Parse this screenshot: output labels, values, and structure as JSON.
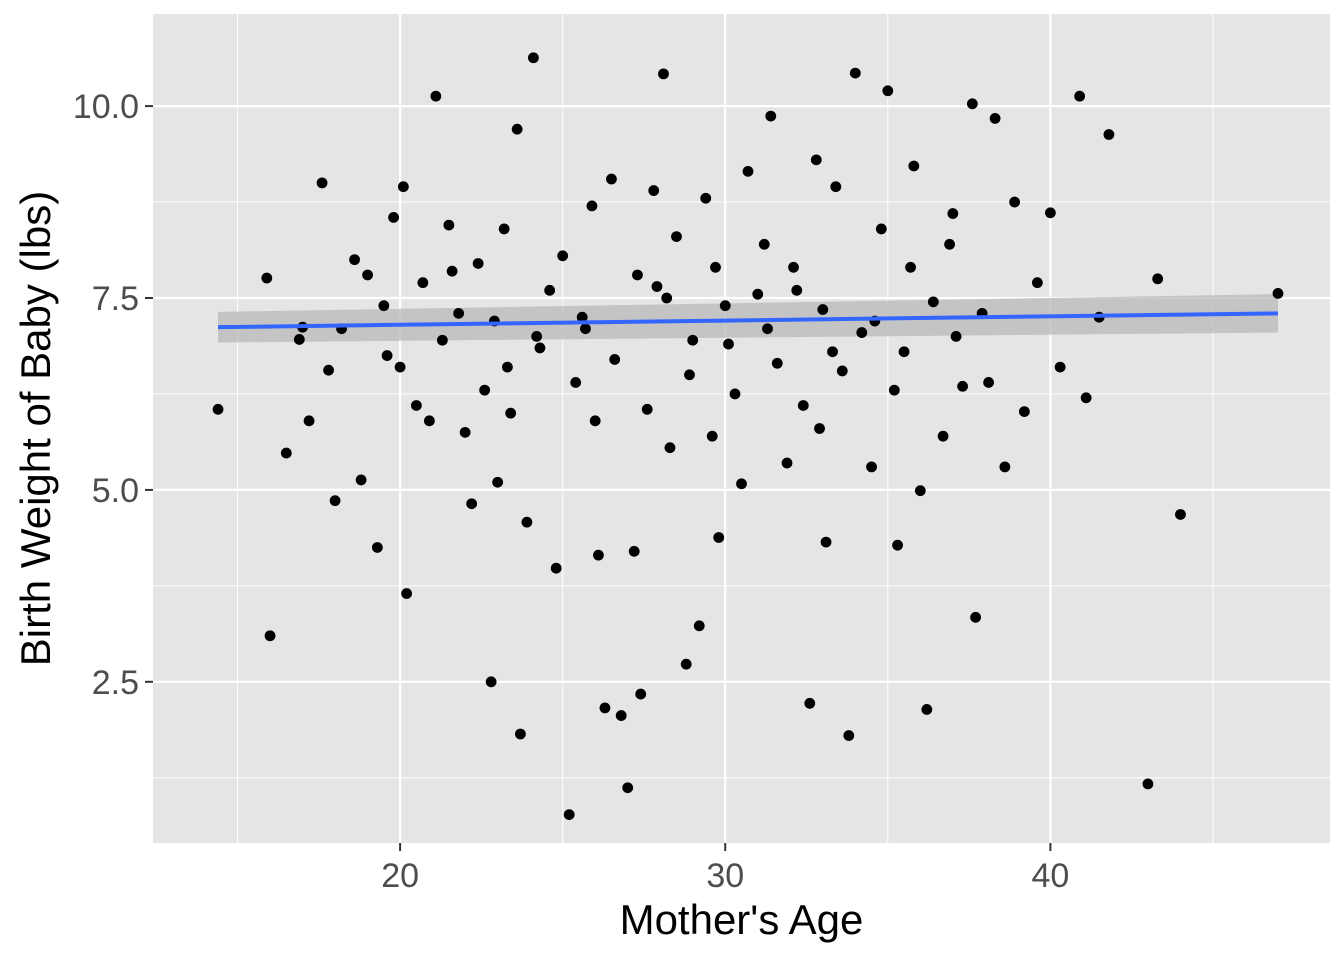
{
  "chart_data": {
    "type": "scatter",
    "title": "",
    "xlabel": "Mother's Age",
    "ylabel": "Birth Weight of Baby (lbs)",
    "xlim": [
      12.4,
      48.6
    ],
    "ylim": [
      0.4,
      11.2
    ],
    "x_ticks": [
      20,
      30,
      40
    ],
    "x_tick_labels": [
      "20",
      "30",
      "40"
    ],
    "x_minor_ticks": [
      15,
      25,
      35,
      45
    ],
    "y_ticks": [
      2.5,
      5.0,
      7.5,
      10.0
    ],
    "y_tick_labels": [
      "2.5",
      "5.0",
      "7.5",
      "10.0"
    ],
    "y_minor_ticks": [
      1.25,
      3.75,
      6.25,
      8.75
    ],
    "grid": true,
    "legend": "none",
    "colors": {
      "panel_background": "#e5e5e5",
      "grid": "#ffffff",
      "points": "#000000",
      "fit_line": "#3366ff",
      "confidence_band": "#b8b8b8"
    },
    "trend_line": {
      "method": "lm",
      "x": [
        14.4,
        47.0
      ],
      "y": [
        7.12,
        7.3
      ],
      "band_lower": [
        6.92,
        7.05
      ],
      "band_upper": [
        7.32,
        7.55
      ]
    },
    "points": [
      [
        14.4,
        6.05
      ],
      [
        15.9,
        7.76
      ],
      [
        16.0,
        3.1
      ],
      [
        16.5,
        5.48
      ],
      [
        16.9,
        6.96
      ],
      [
        17.0,
        7.12
      ],
      [
        17.2,
        5.9
      ],
      [
        17.6,
        9.0
      ],
      [
        17.8,
        6.56
      ],
      [
        18.0,
        4.86
      ],
      [
        18.2,
        7.1
      ],
      [
        18.6,
        8.0
      ],
      [
        18.8,
        5.13
      ],
      [
        19.0,
        7.8
      ],
      [
        19.3,
        4.25
      ],
      [
        19.6,
        6.75
      ],
      [
        19.8,
        8.55
      ],
      [
        20.0,
        6.6
      ],
      [
        20.2,
        3.65
      ],
      [
        20.5,
        6.1
      ],
      [
        20.7,
        7.7
      ],
      [
        20.9,
        5.9
      ],
      [
        21.1,
        10.13
      ],
      [
        21.3,
        6.95
      ],
      [
        21.5,
        8.45
      ],
      [
        21.8,
        7.3
      ],
      [
        22.0,
        5.75
      ],
      [
        22.2,
        4.82
      ],
      [
        22.4,
        7.95
      ],
      [
        22.6,
        6.3
      ],
      [
        22.8,
        2.5
      ],
      [
        23.0,
        5.1
      ],
      [
        23.2,
        8.4
      ],
      [
        23.4,
        6.0
      ],
      [
        23.6,
        9.7
      ],
      [
        23.7,
        1.82
      ],
      [
        23.9,
        4.58
      ],
      [
        24.1,
        10.63
      ],
      [
        24.3,
        6.85
      ],
      [
        24.6,
        7.6
      ],
      [
        24.8,
        3.98
      ],
      [
        25.0,
        8.05
      ],
      [
        25.2,
        0.77
      ],
      [
        25.4,
        6.4
      ],
      [
        25.6,
        7.25
      ],
      [
        25.9,
        8.7
      ],
      [
        26.1,
        4.15
      ],
      [
        26.3,
        2.16
      ],
      [
        26.5,
        9.05
      ],
      [
        26.8,
        2.06
      ],
      [
        27.0,
        1.12
      ],
      [
        27.2,
        4.2
      ],
      [
        27.4,
        2.34
      ],
      [
        27.6,
        6.05
      ],
      [
        27.9,
        7.65
      ],
      [
        28.1,
        10.42
      ],
      [
        28.3,
        5.55
      ],
      [
        28.5,
        8.3
      ],
      [
        28.8,
        2.73
      ],
      [
        29.0,
        6.95
      ],
      [
        29.2,
        3.23
      ],
      [
        29.4,
        8.8
      ],
      [
        29.6,
        5.7
      ],
      [
        29.8,
        4.38
      ],
      [
        30.0,
        7.4
      ],
      [
        30.3,
        6.25
      ],
      [
        30.5,
        5.08
      ],
      [
        30.7,
        9.15
      ],
      [
        31.0,
        7.55
      ],
      [
        31.2,
        8.2
      ],
      [
        31.4,
        9.87
      ],
      [
        31.6,
        6.65
      ],
      [
        31.9,
        5.35
      ],
      [
        32.1,
        7.9
      ],
      [
        32.4,
        6.1
      ],
      [
        32.6,
        2.22
      ],
      [
        32.8,
        9.3
      ],
      [
        33.0,
        7.35
      ],
      [
        33.1,
        4.32
      ],
      [
        33.4,
        8.95
      ],
      [
        33.6,
        6.55
      ],
      [
        33.8,
        1.8
      ],
      [
        34.0,
        10.43
      ],
      [
        34.2,
        7.05
      ],
      [
        34.5,
        5.3
      ],
      [
        34.8,
        8.4
      ],
      [
        35.0,
        10.2
      ],
      [
        35.3,
        4.28
      ],
      [
        35.5,
        6.8
      ],
      [
        35.8,
        9.22
      ],
      [
        36.0,
        4.99
      ],
      [
        36.2,
        2.14
      ],
      [
        36.4,
        7.45
      ],
      [
        36.7,
        5.7
      ],
      [
        37.0,
        8.6
      ],
      [
        37.3,
        6.35
      ],
      [
        37.6,
        10.03
      ],
      [
        37.7,
        3.34
      ],
      [
        37.9,
        7.3
      ],
      [
        38.3,
        9.84
      ],
      [
        38.6,
        5.3
      ],
      [
        38.9,
        8.75
      ],
      [
        39.2,
        6.02
      ],
      [
        39.6,
        7.7
      ],
      [
        40.0,
        8.61
      ],
      [
        40.3,
        6.6
      ],
      [
        40.9,
        10.13
      ],
      [
        41.1,
        6.2
      ],
      [
        41.5,
        7.25
      ],
      [
        41.8,
        9.63
      ],
      [
        43.0,
        1.17
      ],
      [
        43.3,
        7.75
      ],
      [
        44.0,
        4.68
      ],
      [
        47.0,
        7.56
      ],
      [
        19.5,
        7.4
      ],
      [
        20.1,
        8.95
      ],
      [
        21.6,
        7.85
      ],
      [
        22.9,
        7.2
      ],
      [
        24.2,
        7.0
      ],
      [
        25.7,
        7.1
      ],
      [
        26.6,
        6.7
      ],
      [
        27.3,
        7.8
      ],
      [
        28.2,
        7.5
      ],
      [
        28.9,
        6.5
      ],
      [
        30.1,
        6.9
      ],
      [
        31.3,
        7.1
      ],
      [
        32.2,
        7.6
      ],
      [
        33.3,
        6.8
      ],
      [
        34.6,
        7.2
      ],
      [
        35.7,
        7.9
      ],
      [
        37.1,
        7.0
      ],
      [
        38.1,
        6.4
      ],
      [
        23.3,
        6.6
      ],
      [
        26.0,
        5.9
      ],
      [
        27.8,
        8.9
      ],
      [
        29.7,
        7.9
      ],
      [
        32.9,
        5.8
      ],
      [
        35.2,
        6.3
      ],
      [
        36.9,
        8.2
      ]
    ]
  }
}
